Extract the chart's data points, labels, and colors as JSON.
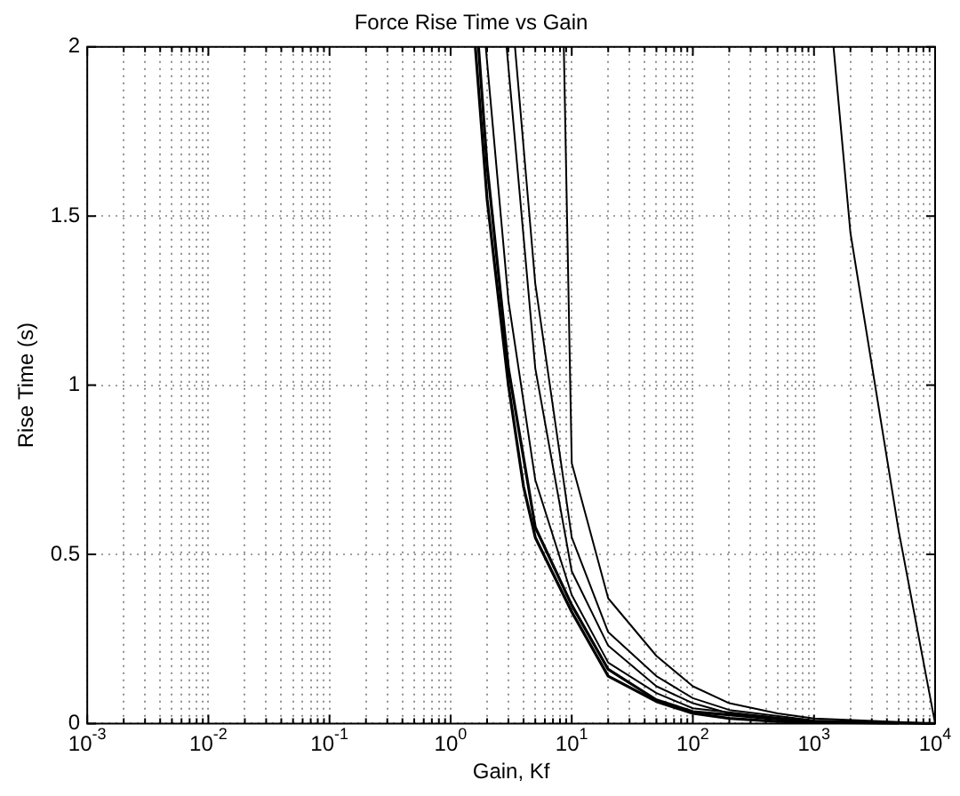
{
  "chart_data": {
    "type": "line",
    "title": "Force Rise Time vs Gain",
    "xlabel": "Gain, Kf",
    "ylabel": "Rise Time (s)",
    "log": "x",
    "grid": true,
    "legend": false,
    "marker": "none",
    "line_style": "solid",
    "xlim": [
      0.001,
      10000
    ],
    "ylim": [
      0,
      2
    ],
    "xticks": [
      {
        "value": 0.001,
        "label": "10$^{-3}$"
      },
      {
        "value": 0.002,
        "label": null
      },
      {
        "value": 0.003,
        "label": null
      },
      {
        "value": 0.004,
        "label": null
      },
      {
        "value": 0.005,
        "label": null
      },
      {
        "value": 0.006,
        "label": null
      },
      {
        "value": 0.007,
        "label": null
      },
      {
        "value": 0.008,
        "label": null
      },
      {
        "value": 0.009,
        "label": null
      },
      {
        "value": 0.01,
        "label": "10$^{-2}$"
      },
      {
        "value": 0.02,
        "label": null
      },
      {
        "value": 0.03,
        "label": null
      },
      {
        "value": 0.04,
        "label": null
      },
      {
        "value": 0.05,
        "label": null
      },
      {
        "value": 0.06,
        "label": null
      },
      {
        "value": 0.07,
        "label": null
      },
      {
        "value": 0.08,
        "label": null
      },
      {
        "value": 0.09,
        "label": null
      },
      {
        "value": 0.1,
        "label": "10$^{-1}$"
      },
      {
        "value": 0.2,
        "label": null
      },
      {
        "value": 0.3,
        "label": null
      },
      {
        "value": 0.4,
        "label": null
      },
      {
        "value": 0.5,
        "label": null
      },
      {
        "value": 0.6,
        "label": null
      },
      {
        "value": 0.7,
        "label": null
      },
      {
        "value": 0.8,
        "label": null
      },
      {
        "value": 0.9,
        "label": null
      },
      {
        "value": 1,
        "label": "10$^{0}$"
      },
      {
        "value": 2,
        "label": null
      },
      {
        "value": 3,
        "label": null
      },
      {
        "value": 4,
        "label": null
      },
      {
        "value": 5,
        "label": null
      },
      {
        "value": 6,
        "label": null
      },
      {
        "value": 7,
        "label": null
      },
      {
        "value": 8,
        "label": null
      },
      {
        "value": 9,
        "label": null
      },
      {
        "value": 10,
        "label": "10$^{1}$"
      },
      {
        "value": 20,
        "label": null
      },
      {
        "value": 30,
        "label": null
      },
      {
        "value": 40,
        "label": null
      },
      {
        "value": 50,
        "label": null
      },
      {
        "value": 60,
        "label": null
      },
      {
        "value": 70,
        "label": null
      },
      {
        "value": 80,
        "label": null
      },
      {
        "value": 90,
        "label": null
      },
      {
        "value": 100,
        "label": "10$^{2}$"
      },
      {
        "value": 200,
        "label": null
      },
      {
        "value": 300,
        "label": null
      },
      {
        "value": 400,
        "label": null
      },
      {
        "value": 500,
        "label": null
      },
      {
        "value": 600,
        "label": null
      },
      {
        "value": 700,
        "label": null
      },
      {
        "value": 800,
        "label": null
      },
      {
        "value": 900,
        "label": null
      },
      {
        "value": 1000,
        "label": "10$^{3}$"
      },
      {
        "value": 2000,
        "label": null
      },
      {
        "value": 3000,
        "label": null
      },
      {
        "value": 4000,
        "label": null
      },
      {
        "value": 5000,
        "label": null
      },
      {
        "value": 6000,
        "label": null
      },
      {
        "value": 7000,
        "label": null
      },
      {
        "value": 8000,
        "label": null
      },
      {
        "value": 9000,
        "label": null
      },
      {
        "value": 10000,
        "label": "10$^{4}$"
      }
    ],
    "yticks": [
      0,
      0.5,
      1,
      1.5,
      2
    ],
    "series": [
      {
        "color": "#000000",
        "x": [
          1.6,
          2,
          3,
          4,
          5,
          10,
          20,
          50,
          100,
          200,
          500,
          1000,
          5000
        ],
        "values": [
          2,
          1.55,
          1,
          0.7,
          0.55,
          0.33,
          0.14,
          0.065,
          0.03,
          0.015,
          0.006,
          0.003,
          0.001
        ]
      },
      {
        "color": "#000000",
        "x": [
          1.7,
          2,
          3,
          5,
          10,
          20,
          50,
          100,
          1000,
          10000
        ],
        "values": [
          2,
          1.65,
          1.05,
          0.58,
          0.35,
          0.16,
          0.07,
          0.035,
          0.004,
          0
        ]
      },
      {
        "color": "#000000",
        "x": [
          1.95,
          3,
          5,
          10,
          20,
          50,
          100,
          1000,
          10000
        ],
        "values": [
          2,
          1.25,
          0.72,
          0.38,
          0.18,
          0.09,
          0.045,
          0.005,
          0
        ]
      },
      {
        "color": "#000000",
        "x": [
          2.9,
          5,
          10,
          20,
          50,
          100,
          200,
          1000,
          10000
        ],
        "values": [
          2,
          1.05,
          0.45,
          0.23,
          0.11,
          0.06,
          0.03,
          0.007,
          0
        ]
      },
      {
        "color": "#000000",
        "x": [
          3.4,
          5,
          10,
          20,
          50,
          100,
          200,
          1000,
          10000
        ],
        "values": [
          2,
          1.3,
          0.55,
          0.27,
          0.14,
          0.075,
          0.04,
          0.009,
          0
        ]
      },
      {
        "color": "#000000",
        "x": [
          8.6,
          10,
          20,
          50,
          100,
          200,
          500,
          1000,
          10000
        ],
        "values": [
          2,
          0.77,
          0.37,
          0.2,
          0.11,
          0.06,
          0.03,
          0.015,
          0
        ]
      },
      {
        "color": "#000000",
        "x": [
          1450,
          2000,
          5000,
          10000
        ],
        "values": [
          2,
          1.45,
          0.57,
          0
        ]
      }
    ]
  }
}
